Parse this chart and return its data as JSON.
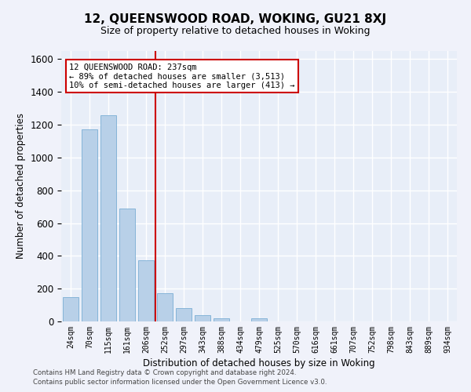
{
  "title": "12, QUEENSWOOD ROAD, WOKING, GU21 8XJ",
  "subtitle": "Size of property relative to detached houses in Woking",
  "xlabel": "Distribution of detached houses by size in Woking",
  "ylabel": "Number of detached properties",
  "bar_color": "#b8d0e8",
  "bar_edge_color": "#7aadd4",
  "background_color": "#e8eef8",
  "grid_color": "#ffffff",
  "categories": [
    "24sqm",
    "70sqm",
    "115sqm",
    "161sqm",
    "206sqm",
    "252sqm",
    "297sqm",
    "343sqm",
    "388sqm",
    "434sqm",
    "479sqm",
    "525sqm",
    "570sqm",
    "616sqm",
    "661sqm",
    "707sqm",
    "752sqm",
    "798sqm",
    "843sqm",
    "889sqm",
    "934sqm"
  ],
  "values": [
    148,
    1170,
    1258,
    690,
    375,
    170,
    83,
    37,
    20,
    0,
    20,
    0,
    0,
    0,
    0,
    0,
    0,
    0,
    0,
    0,
    0
  ],
  "ylim": [
    0,
    1650
  ],
  "yticks": [
    0,
    200,
    400,
    600,
    800,
    1000,
    1200,
    1400,
    1600
  ],
  "property_line_x": 4.5,
  "annotation_text": "12 QUEENSWOOD ROAD: 237sqm\n← 89% of detached houses are smaller (3,513)\n10% of semi-detached houses are larger (413) →",
  "annotation_box_color": "#ffffff",
  "annotation_edge_color": "#cc0000",
  "property_line_color": "#cc0000",
  "footer_line1": "Contains HM Land Registry data © Crown copyright and database right 2024.",
  "footer_line2": "Contains public sector information licensed under the Open Government Licence v3.0."
}
